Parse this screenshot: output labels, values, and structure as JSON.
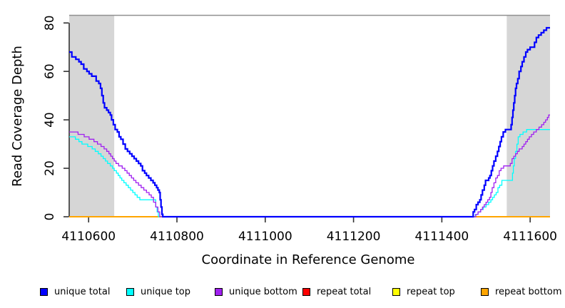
{
  "figure": {
    "background": "#FFFFFF",
    "plot_top_border_color": "#909090",
    "axis_color": "#333333",
    "shade_color": "#D6D6D6"
  },
  "chart_data": {
    "type": "line",
    "step": true,
    "title": "",
    "xlabel": "Coordinate in Reference Genome",
    "ylabel": "Read Coverage Depth",
    "xlim": [
      4110556,
      4111645
    ],
    "ylim": [
      0,
      83
    ],
    "grid": false,
    "legend_position": "bottom",
    "xticks": {
      "values": [
        4110600,
        4110800,
        4111000,
        4111200,
        4111400,
        4111600
      ],
      "labels": [
        "4110600",
        "4110800",
        "4111000",
        "4111200",
        "4111400",
        "4111600"
      ]
    },
    "yticks": {
      "values": [
        0,
        20,
        40,
        60,
        80
      ],
      "labels": [
        "0",
        "20",
        "40",
        "60",
        "80"
      ]
    },
    "shaded_regions": [
      {
        "x0": 4110556,
        "x1": 4110658
      },
      {
        "x0": 4111547,
        "x1": 4111645
      }
    ],
    "series": [
      {
        "name": "repeat total",
        "color": "#FF0000",
        "width": 1.3,
        "points": [
          [
            4110556,
            0
          ],
          [
            4111645,
            0
          ]
        ]
      },
      {
        "name": "repeat top",
        "color": "#FFFF00",
        "width": 1.3,
        "points": [
          [
            4110556,
            0
          ],
          [
            4111645,
            0
          ]
        ]
      },
      {
        "name": "repeat bottom",
        "color": "#FFA500",
        "width": 2,
        "points": [
          [
            4110556,
            0
          ],
          [
            4111645,
            0
          ]
        ]
      },
      {
        "name": "unique top",
        "color": "#00FFFF",
        "width": 1.3,
        "points": [
          [
            4110556,
            33
          ],
          [
            4110570,
            32
          ],
          [
            4110578,
            31
          ],
          [
            4110585,
            30
          ],
          [
            4110598,
            29
          ],
          [
            4110608,
            28
          ],
          [
            4110615,
            27
          ],
          [
            4110622,
            26
          ],
          [
            4110628,
            25
          ],
          [
            4110633,
            24
          ],
          [
            4110638,
            23
          ],
          [
            4110643,
            22
          ],
          [
            4110649,
            21
          ],
          [
            4110654,
            20
          ],
          [
            4110658,
            19
          ],
          [
            4110663,
            18
          ],
          [
            4110667,
            17
          ],
          [
            4110671,
            16
          ],
          [
            4110675,
            15
          ],
          [
            4110680,
            14
          ],
          [
            4110685,
            13
          ],
          [
            4110690,
            12
          ],
          [
            4110695,
            11
          ],
          [
            4110700,
            10
          ],
          [
            4110705,
            9
          ],
          [
            4110710,
            8
          ],
          [
            4110716,
            7
          ],
          [
            4110748,
            7
          ],
          [
            4110752,
            4
          ],
          [
            4110755,
            2
          ],
          [
            4110758,
            0
          ],
          [
            4111474,
            0
          ],
          [
            4111476,
            1
          ],
          [
            4111482,
            2
          ],
          [
            4111488,
            3
          ],
          [
            4111494,
            4
          ],
          [
            4111500,
            5
          ],
          [
            4111506,
            6
          ],
          [
            4111511,
            7
          ],
          [
            4111515,
            8
          ],
          [
            4111519,
            9
          ],
          [
            4111523,
            10
          ],
          [
            4111527,
            12
          ],
          [
            4111531,
            13
          ],
          [
            4111536,
            15
          ],
          [
            4111556,
            15
          ],
          [
            4111560,
            18
          ],
          [
            4111562,
            21
          ],
          [
            4111564,
            24
          ],
          [
            4111567,
            27
          ],
          [
            4111570,
            30
          ],
          [
            4111573,
            33
          ],
          [
            4111577,
            34
          ],
          [
            4111584,
            35
          ],
          [
            4111592,
            36
          ],
          [
            4111645,
            36
          ]
        ]
      },
      {
        "name": "unique bottom",
        "color": "#A020F0",
        "width": 1.3,
        "points": [
          [
            4110556,
            35
          ],
          [
            4110576,
            34
          ],
          [
            4110590,
            33
          ],
          [
            4110601,
            32
          ],
          [
            4110612,
            31
          ],
          [
            4110620,
            30
          ],
          [
            4110628,
            29
          ],
          [
            4110635,
            28
          ],
          [
            4110641,
            27
          ],
          [
            4110646,
            26
          ],
          [
            4110650,
            25
          ],
          [
            4110654,
            24
          ],
          [
            4110658,
            23
          ],
          [
            4110662,
            22
          ],
          [
            4110668,
            21
          ],
          [
            4110676,
            20
          ],
          [
            4110682,
            19
          ],
          [
            4110687,
            18
          ],
          [
            4110692,
            17
          ],
          [
            4110697,
            16
          ],
          [
            4110702,
            15
          ],
          [
            4110707,
            14
          ],
          [
            4110713,
            13
          ],
          [
            4110719,
            12
          ],
          [
            4110725,
            11
          ],
          [
            4110731,
            10
          ],
          [
            4110737,
            9
          ],
          [
            4110742,
            8
          ],
          [
            4110747,
            6
          ],
          [
            4110752,
            4
          ],
          [
            4110757,
            2
          ],
          [
            4110761,
            0
          ],
          [
            4111475,
            0
          ],
          [
            4111477,
            1
          ],
          [
            4111482,
            2
          ],
          [
            4111488,
            3
          ],
          [
            4111492,
            4
          ],
          [
            4111496,
            5
          ],
          [
            4111500,
            6
          ],
          [
            4111504,
            7
          ],
          [
            4111508,
            8
          ],
          [
            4111511,
            10
          ],
          [
            4111514,
            12
          ],
          [
            4111518,
            14
          ],
          [
            4111522,
            16
          ],
          [
            4111526,
            17
          ],
          [
            4111530,
            19
          ],
          [
            4111534,
            20
          ],
          [
            4111540,
            21
          ],
          [
            4111551,
            21
          ],
          [
            4111555,
            22
          ],
          [
            4111559,
            24
          ],
          [
            4111563,
            25
          ],
          [
            4111567,
            26
          ],
          [
            4111571,
            27
          ],
          [
            4111575,
            28
          ],
          [
            4111582,
            29
          ],
          [
            4111586,
            30
          ],
          [
            4111590,
            31
          ],
          [
            4111594,
            32
          ],
          [
            4111598,
            33
          ],
          [
            4111603,
            34
          ],
          [
            4111608,
            35
          ],
          [
            4111614,
            36
          ],
          [
            4111620,
            37
          ],
          [
            4111626,
            38
          ],
          [
            4111631,
            39
          ],
          [
            4111635,
            40
          ],
          [
            4111639,
            41
          ],
          [
            4111642,
            42
          ],
          [
            4111645,
            42
          ]
        ]
      },
      {
        "name": "unique total",
        "color": "#0000FF",
        "width": 2.2,
        "points": [
          [
            4110556,
            68
          ],
          [
            4110562,
            66
          ],
          [
            4110571,
            65
          ],
          [
            4110578,
            64
          ],
          [
            4110583,
            63
          ],
          [
            4110589,
            61
          ],
          [
            4110596,
            60
          ],
          [
            4110601,
            59
          ],
          [
            4110607,
            58
          ],
          [
            4110617,
            56
          ],
          [
            4110623,
            55
          ],
          [
            4110627,
            53
          ],
          [
            4110630,
            50
          ],
          [
            4110633,
            47
          ],
          [
            4110636,
            45
          ],
          [
            4110641,
            44
          ],
          [
            4110645,
            43
          ],
          [
            4110649,
            42
          ],
          [
            4110652,
            40
          ],
          [
            4110656,
            38
          ],
          [
            4110660,
            36
          ],
          [
            4110665,
            35
          ],
          [
            4110669,
            33
          ],
          [
            4110673,
            32
          ],
          [
            4110678,
            30
          ],
          [
            4110683,
            28
          ],
          [
            4110688,
            27
          ],
          [
            4110693,
            26
          ],
          [
            4110698,
            25
          ],
          [
            4110703,
            24
          ],
          [
            4110708,
            23
          ],
          [
            4110713,
            22
          ],
          [
            4110718,
            21
          ],
          [
            4110722,
            19
          ],
          [
            4110727,
            18
          ],
          [
            4110731,
            17
          ],
          [
            4110736,
            16
          ],
          [
            4110741,
            15
          ],
          [
            4110746,
            14
          ],
          [
            4110750,
            13
          ],
          [
            4110754,
            12
          ],
          [
            4110757,
            11
          ],
          [
            4110760,
            10
          ],
          [
            4110762,
            7
          ],
          [
            4110764,
            4
          ],
          [
            4110766,
            1
          ],
          [
            4110768,
            0
          ],
          [
            4111470,
            0
          ],
          [
            4111471,
            2
          ],
          [
            4111474,
            3
          ],
          [
            4111478,
            5
          ],
          [
            4111482,
            6
          ],
          [
            4111486,
            7
          ],
          [
            4111489,
            9
          ],
          [
            4111492,
            11
          ],
          [
            4111496,
            13
          ],
          [
            4111499,
            15
          ],
          [
            4111506,
            16
          ],
          [
            4111509,
            17
          ],
          [
            4111512,
            19
          ],
          [
            4111515,
            21
          ],
          [
            4111518,
            23
          ],
          [
            4111522,
            25
          ],
          [
            4111526,
            27
          ],
          [
            4111529,
            29
          ],
          [
            4111532,
            31
          ],
          [
            4111535,
            33
          ],
          [
            4111539,
            35
          ],
          [
            4111544,
            36
          ],
          [
            4111554,
            36
          ],
          [
            4111557,
            38
          ],
          [
            4111559,
            41
          ],
          [
            4111561,
            44
          ],
          [
            4111563,
            47
          ],
          [
            4111565,
            50
          ],
          [
            4111567,
            53
          ],
          [
            4111569,
            55
          ],
          [
            4111572,
            57
          ],
          [
            4111575,
            60
          ],
          [
            4111579,
            62
          ],
          [
            4111582,
            64
          ],
          [
            4111586,
            66
          ],
          [
            4111590,
            68
          ],
          [
            4111594,
            69
          ],
          [
            4111600,
            70
          ],
          [
            4111607,
            70
          ],
          [
            4111610,
            72
          ],
          [
            4111614,
            74
          ],
          [
            4111619,
            75
          ],
          [
            4111625,
            76
          ],
          [
            4111631,
            77
          ],
          [
            4111637,
            78
          ],
          [
            4111645,
            78
          ]
        ]
      }
    ],
    "legend": [
      {
        "label": "unique total",
        "color": "#0000FF"
      },
      {
        "label": "unique top",
        "color": "#00FFFF"
      },
      {
        "label": "unique bottom",
        "color": "#A020F0"
      },
      {
        "label": "repeat total",
        "color": "#FF0000"
      },
      {
        "label": "repeat top",
        "color": "#FFFF00"
      },
      {
        "label": "repeat bottom",
        "color": "#FFA500"
      }
    ]
  }
}
